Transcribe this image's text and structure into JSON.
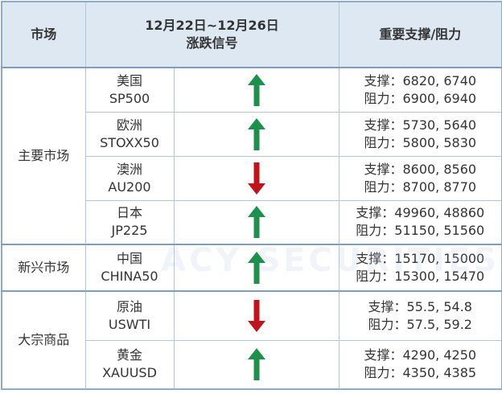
{
  "watermark": "ACY SECURITIES",
  "header": {
    "market": "市场",
    "period": "12月22日~12月26日",
    "signal": "涨跌信号",
    "levels": "重要支撑/阻力"
  },
  "groups": [
    {
      "name": "主要市场",
      "rows": [
        {
          "market": "美国",
          "code": "SP500",
          "signal": "up",
          "support": "支撑：6820, 6740",
          "resistance": "阻力：6900, 6940"
        },
        {
          "market": "欧洲",
          "code": "STOXX50",
          "signal": "up",
          "support": "支撑：5730, 5640",
          "resistance": "阻力：5800, 5830"
        },
        {
          "market": "澳洲",
          "code": "AU200",
          "signal": "down",
          "support": "支撑：8600, 8560",
          "resistance": "阻力：8700, 8770"
        },
        {
          "market": "日本",
          "code": "JP225",
          "signal": "up",
          "support": "支撑：49960, 48860",
          "resistance": "阻力：51150, 51560"
        }
      ]
    },
    {
      "name": "新兴市场",
      "rows": [
        {
          "market": "中国",
          "code": "CHINA50",
          "signal": "up",
          "support": "支撑：15170, 15000",
          "resistance": "阻力：15300, 15470"
        }
      ]
    },
    {
      "name": "大宗商品",
      "rows": [
        {
          "market": "原油",
          "code": "USWTI",
          "signal": "down",
          "support": "支撑：55.5, 54.8",
          "resistance": "阻力：57.5, 59.2"
        },
        {
          "market": "黄金",
          "code": "XAUUSD",
          "signal": "up",
          "support": "支撑：4290, 4250",
          "resistance": "阻力：4350, 4385"
        }
      ]
    }
  ]
}
